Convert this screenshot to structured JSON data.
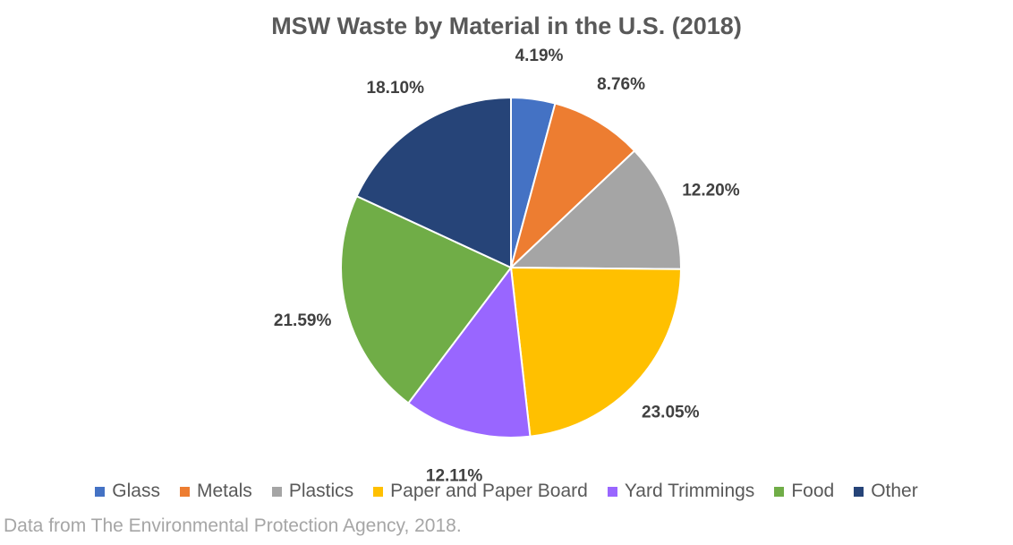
{
  "chart_data": {
    "type": "pie",
    "title": "MSW Waste by Material in the U.S. (2018)",
    "categories": [
      "Glass",
      "Metals",
      "Plastics",
      "Paper and Paper Board",
      "Yard Trimmings",
      "Food",
      "Other"
    ],
    "values": [
      4.19,
      8.76,
      12.2,
      23.05,
      12.11,
      21.59,
      18.1
    ],
    "data_labels": [
      "4.19%",
      "8.76%",
      "12.20%",
      "23.05%",
      "12.11%",
      "21.59%",
      "18.10%"
    ],
    "colors": [
      "#4472C4",
      "#ED7D31",
      "#A5A5A5",
      "#FFC000",
      "#9966FF",
      "#70AD47",
      "#264478"
    ],
    "start_angle_deg": 0,
    "direction": "clockwise",
    "legend_position": "bottom"
  },
  "source_note": "Data from The Environmental Protection Agency, 2018."
}
